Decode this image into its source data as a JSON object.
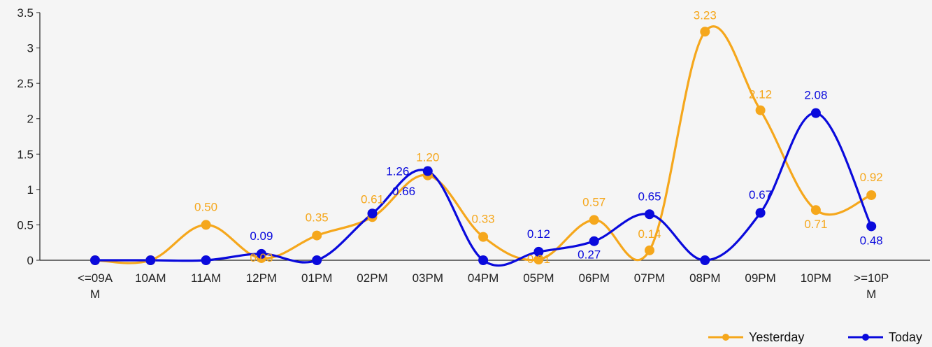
{
  "chart_data": {
    "type": "line",
    "categories": [
      "<=09AM",
      "10AM",
      "11AM",
      "12PM",
      "01PM",
      "02PM",
      "03PM",
      "04PM",
      "05PM",
      "06PM",
      "07PM",
      "08PM",
      "09PM",
      "10PM",
      ">=10PM"
    ],
    "category_display": [
      [
        "<=09A",
        "M"
      ],
      [
        "10AM"
      ],
      [
        "11AM"
      ],
      [
        "12PM"
      ],
      [
        "01PM"
      ],
      [
        "02PM"
      ],
      [
        "03PM"
      ],
      [
        "04PM"
      ],
      [
        "05PM"
      ],
      [
        "06PM"
      ],
      [
        "07PM"
      ],
      [
        "08PM"
      ],
      [
        "09PM"
      ],
      [
        "10PM"
      ],
      [
        ">=10P",
        "M"
      ]
    ],
    "series": [
      {
        "name": "Yesterday",
        "color": "#F5A71C",
        "values": [
          0,
          0,
          0.5,
          0.03,
          0.35,
          0.61,
          1.2,
          0.33,
          0.01,
          0.57,
          0.14,
          3.23,
          2.12,
          0.71,
          0.92
        ],
        "labels": [
          "",
          "",
          "0.50",
          "0.03",
          "0.35",
          "0.61",
          "1.20",
          "0.33",
          "0.01",
          "0.57",
          "0.14",
          "3.23",
          "2.12",
          "0.71",
          "0.92"
        ]
      },
      {
        "name": "Today",
        "color": "#0A0ADC",
        "values": [
          0,
          0,
          0,
          0.09,
          0,
          0.66,
          1.26,
          0,
          0.12,
          0.27,
          0.65,
          0,
          0.67,
          2.08,
          0.48
        ],
        "labels": [
          "",
          "",
          "",
          "0.09",
          "",
          "0.66",
          "1.26",
          "",
          "0.12",
          "0.27",
          "0.65",
          "",
          "0.67",
          "2.08",
          "0.48"
        ]
      }
    ],
    "yticks": [
      "0",
      "0.5",
      "1",
      "1.5",
      "2",
      "2.5",
      "3",
      "3.5"
    ],
    "ylim": [
      0,
      3.5
    ],
    "title": "",
    "xlabel": "",
    "ylabel": "",
    "grid": false,
    "legend_position": "bottom-right"
  }
}
